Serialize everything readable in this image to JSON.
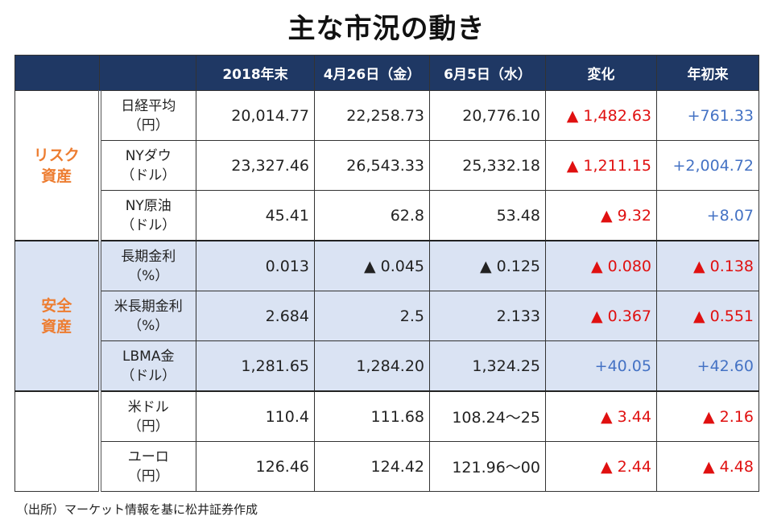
{
  "title": "主な市況の動き",
  "colors": {
    "header_bg": "#1f3864",
    "group_label": "#ed7d31",
    "safe_bg": "#dae3f3",
    "up_red": "#e01010",
    "plus_blue": "#4472c4"
  },
  "headers": [
    "",
    "",
    "2018年末",
    "4月26日（金）",
    "6月5日（水）",
    "変化",
    "年初来"
  ],
  "groups": [
    {
      "label": "リスク\n資産",
      "safe": false,
      "rows": [
        {
          "item": [
            "日経平均",
            "（円）"
          ],
          "values": [
            "20,014.77",
            "22,258.73",
            "20,776.10"
          ],
          "change": "▲ 1,482.63",
          "change_color": "red",
          "ytd": "+761.33",
          "ytd_color": "blue"
        },
        {
          "item": [
            "NYダウ",
            "（ドル）"
          ],
          "values": [
            "23,327.46",
            "26,543.33",
            "25,332.18"
          ],
          "change": "▲ 1,211.15",
          "change_color": "red",
          "ytd": "+2,004.72",
          "ytd_color": "blue"
        },
        {
          "item": [
            "NY原油",
            "（ドル）"
          ],
          "values": [
            "45.41",
            "62.8",
            "53.48"
          ],
          "change": "▲ 9.32",
          "change_color": "red",
          "ytd": "+8.07",
          "ytd_color": "blue"
        }
      ]
    },
    {
      "label": "安全\n資産",
      "safe": true,
      "rows": [
        {
          "item": [
            "長期金利",
            "（%）"
          ],
          "values": [
            "0.013",
            "▲ 0.045",
            "▲ 0.125"
          ],
          "change": "▲ 0.080",
          "change_color": "red",
          "ytd": "▲ 0.138",
          "ytd_color": "red"
        },
        {
          "item": [
            "米長期金利",
            "（%）"
          ],
          "values": [
            "2.684",
            "2.5",
            "2.133"
          ],
          "change": "▲ 0.367",
          "change_color": "red",
          "ytd": "▲ 0.551",
          "ytd_color": "red"
        },
        {
          "item": [
            "LBMA金",
            "（ドル）"
          ],
          "values": [
            "1,281.65",
            "1,284.20",
            "1,324.25"
          ],
          "change": "+40.05",
          "change_color": "blue",
          "ytd": "+42.60",
          "ytd_color": "blue"
        }
      ]
    },
    {
      "label": "",
      "safe": false,
      "rows": [
        {
          "item": [
            "米ドル",
            "（円）"
          ],
          "values": [
            "110.4",
            "111.68",
            "108.24～25"
          ],
          "change": "▲ 3.44",
          "change_color": "red",
          "ytd": "▲ 2.16",
          "ytd_color": "red"
        },
        {
          "item": [
            "ユーロ",
            "（円）"
          ],
          "values": [
            "126.46",
            "124.42",
            "121.96～00"
          ],
          "change": "▲ 2.44",
          "change_color": "red",
          "ytd": "▲ 4.48",
          "ytd_color": "red"
        }
      ]
    }
  ],
  "source_note": "（出所）マーケット情報を基に松井証券作成"
}
